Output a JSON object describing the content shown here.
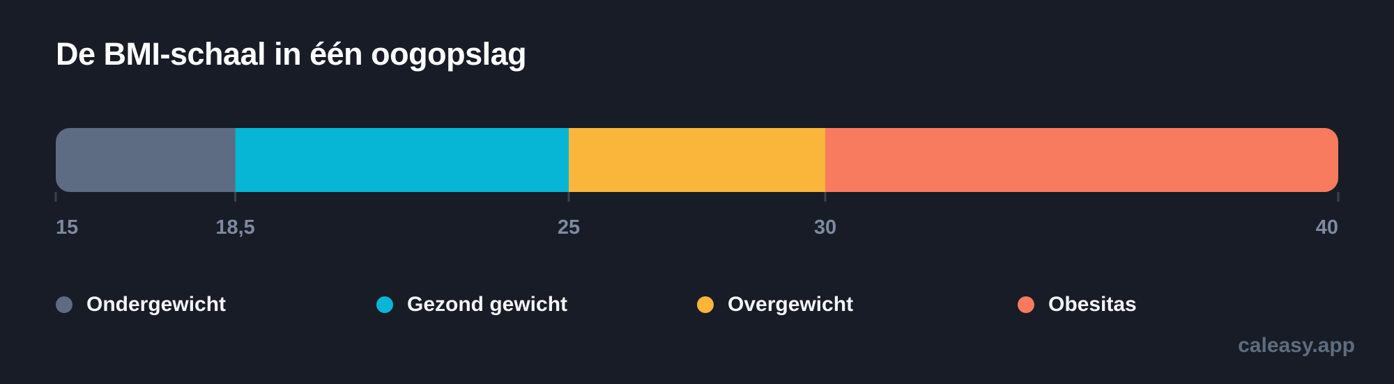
{
  "title": "De BMI-schaal in één oogopslag",
  "watermark": "caleasy.app",
  "colors": {
    "background": "#181c26",
    "tick_line": "#3a4252",
    "tick_label": "#7d8aa0"
  },
  "chart_data": {
    "type": "bar",
    "orientation": "horizontal-stacked-scale",
    "title": "De BMI-schaal in één oogopslag",
    "xlim": [
      15,
      40
    ],
    "ticks": [
      15,
      18.5,
      25,
      30,
      40
    ],
    "tick_labels": [
      "15",
      "18,5",
      "25",
      "30",
      "40"
    ],
    "segments": [
      {
        "name": "Ondergewicht",
        "from": 15,
        "to": 18.5,
        "color": "#5d6b83"
      },
      {
        "name": "Gezond gewicht",
        "from": 18.5,
        "to": 25,
        "color": "#06b6d4"
      },
      {
        "name": "Overgewicht",
        "from": 25,
        "to": 30,
        "color": "#fab53b"
      },
      {
        "name": "Obesitas",
        "from": 30,
        "to": 40,
        "color": "#f87a5f"
      }
    ],
    "legend_placement": "bottom"
  },
  "legend": [
    {
      "label": "Ondergewicht",
      "color": "#5d6b83"
    },
    {
      "label": "Gezond gewicht",
      "color": "#06b6d4"
    },
    {
      "label": "Overgewicht",
      "color": "#fab53b"
    },
    {
      "label": "Obesitas",
      "color": "#f87a5f"
    }
  ]
}
